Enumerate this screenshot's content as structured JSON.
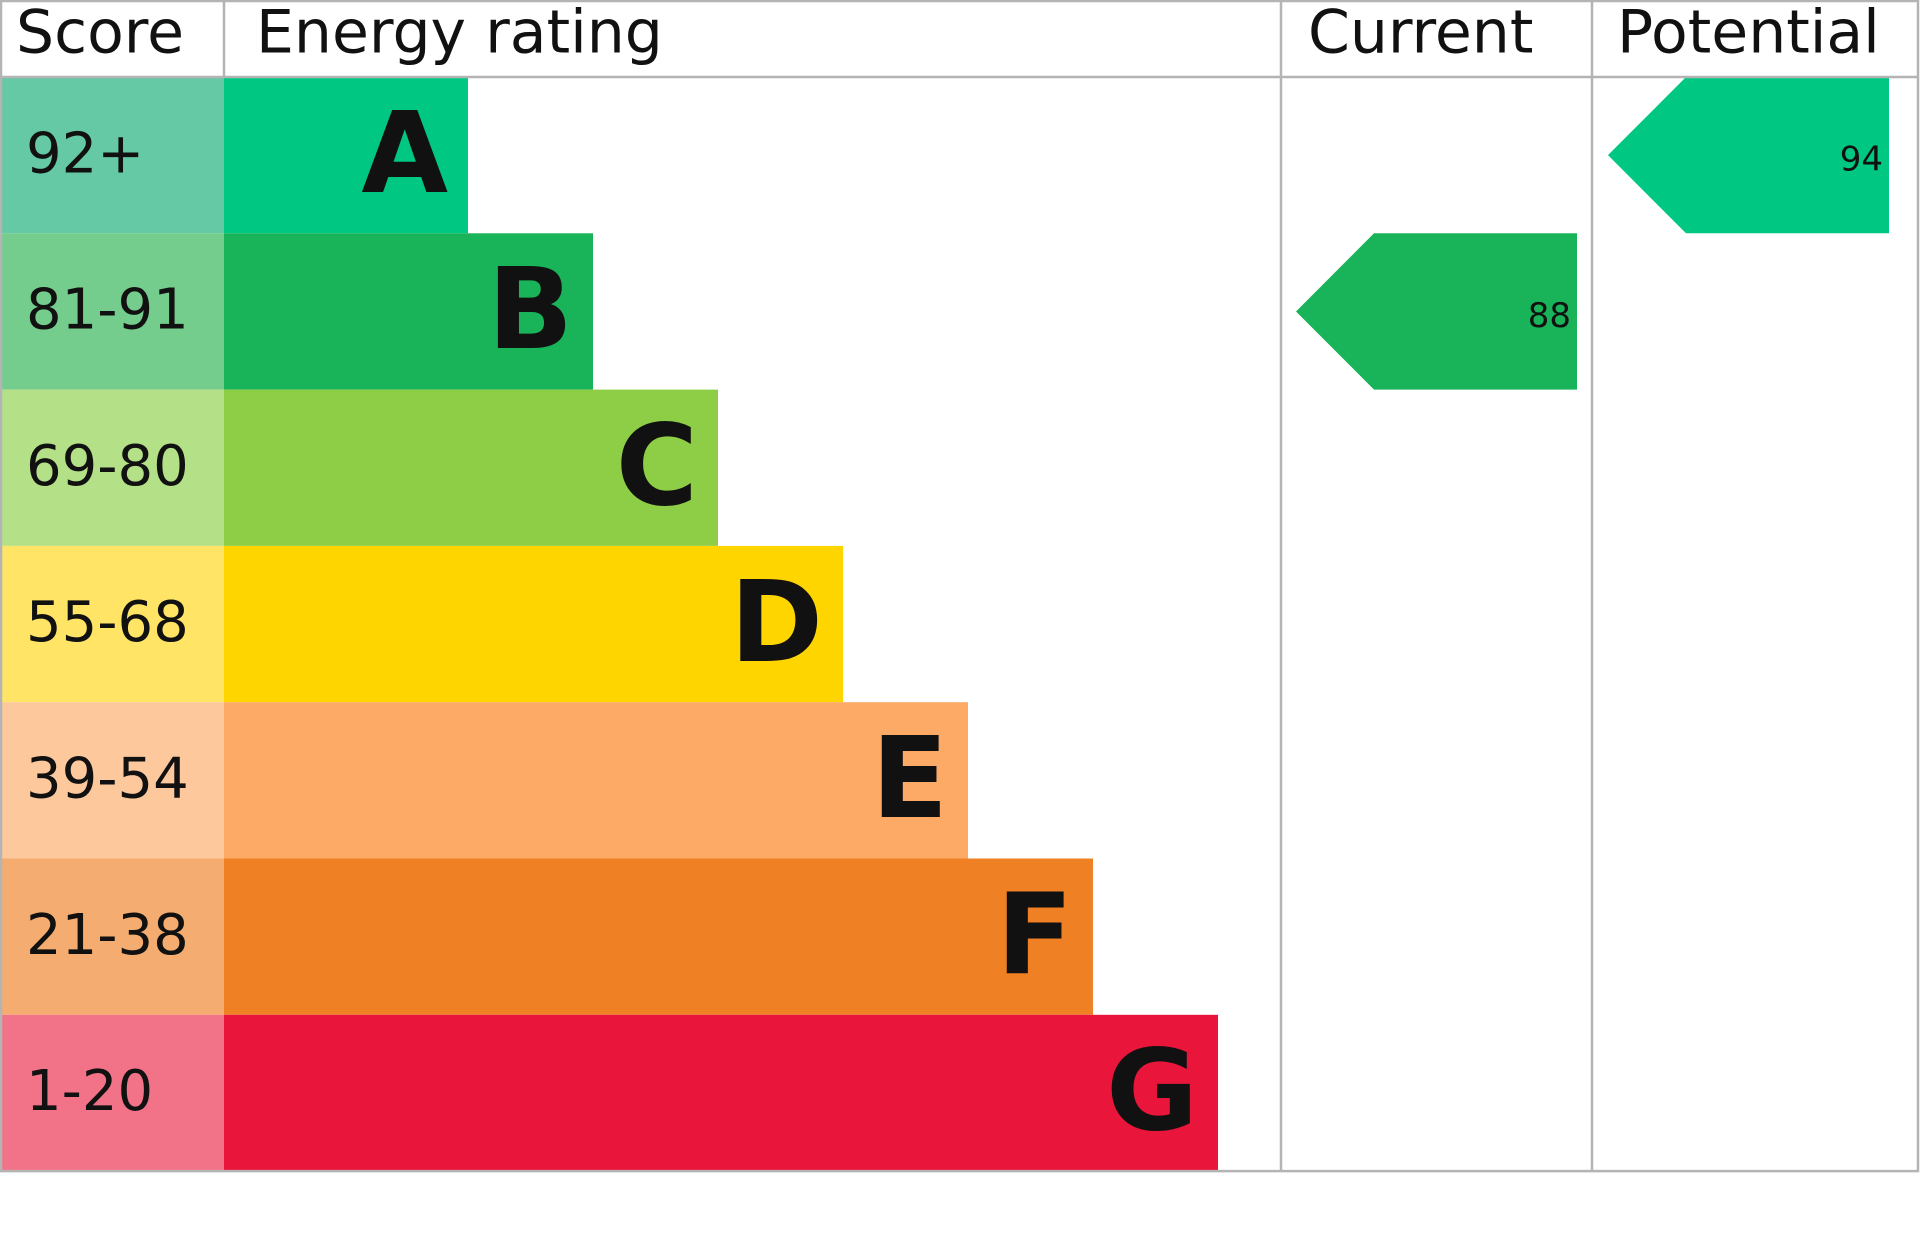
{
  "chart_data": {
    "type": "epc",
    "headers": [
      "Score",
      "Energy rating",
      "Current",
      "Potential"
    ],
    "bands": [
      {
        "rating": "A",
        "range": "92+",
        "color": "#00c781",
        "score_color": "#64c9a4"
      },
      {
        "rating": "B",
        "range": "81-91",
        "color": "#19b459",
        "score_color": "#75cd8d"
      },
      {
        "rating": "C",
        "range": "69-80",
        "color": "#8dce46",
        "score_color": "#b4e188"
      },
      {
        "rating": "D",
        "range": "55-68",
        "color": "#ffd500",
        "score_color": "#ffe466"
      },
      {
        "rating": "E",
        "range": "39-54",
        "color": "#fcaa65",
        "score_color": "#fdc89c"
      },
      {
        "rating": "F",
        "range": "21-38",
        "color": "#ef8023",
        "score_color": "#f4ac70"
      },
      {
        "rating": "G",
        "range": "1-20",
        "color": "#e9153b",
        "score_color": "#f27388"
      }
    ],
    "current": 88,
    "potential": 94
  }
}
